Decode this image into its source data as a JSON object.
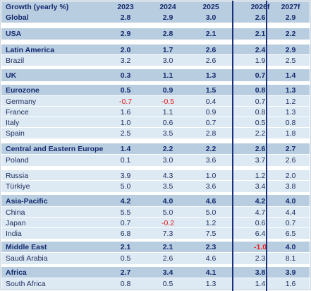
{
  "header": {
    "label": "Growth (yearly %)",
    "years": [
      "2023",
      "2024",
      "2025",
      "2026f",
      "2027f"
    ]
  },
  "colors": {
    "header_bg": "#b9cde0",
    "region_bg": "#b9cde0",
    "row_bg": "#dde9f3",
    "spacer_bg": "#ffffff",
    "negative": "#e62020",
    "text": "#1d2b5c",
    "divider": "#1b2f7a"
  },
  "rows": [
    {
      "label": "Global",
      "values": [
        "2.8",
        "2.9",
        "3.0",
        "2.6",
        "2.9"
      ],
      "bold": true
    },
    {
      "label": "USA",
      "values": [
        "2.9",
        "2.8",
        "2.1",
        "2.1",
        "2.2"
      ],
      "bold": true
    },
    {
      "label": "Latin America",
      "values": [
        "2.0",
        "1.7",
        "2.6",
        "2.4",
        "2.9"
      ],
      "bold": true
    },
    {
      "label": "Brazil",
      "values": [
        "3.2",
        "3.0",
        "2.6",
        "1.9",
        "2.5"
      ],
      "bold": false
    },
    {
      "label": "UK",
      "values": [
        "0.3",
        "1.1",
        "1.3",
        "0.7",
        "1.4"
      ],
      "bold": true
    },
    {
      "label": "Eurozone",
      "values": [
        "0.5",
        "0.9",
        "1.5",
        "0.8",
        "1.3"
      ],
      "bold": true
    },
    {
      "label": "Germany",
      "values": [
        "-0.7",
        "-0.5",
        "0.4",
        "0.7",
        "1.2"
      ],
      "bold": false
    },
    {
      "label": "France",
      "values": [
        "1.6",
        "1.1",
        "0.9",
        "0.8",
        "1.3"
      ],
      "bold": false
    },
    {
      "label": "Italy",
      "values": [
        "1.0",
        "0.6",
        "0.7",
        "0.5",
        "0.8"
      ],
      "bold": false
    },
    {
      "label": "Spain",
      "values": [
        "2.5",
        "3.5",
        "2.8",
        "2.2",
        "1.8"
      ],
      "bold": false
    },
    {
      "label": "Central and Eastern Europe",
      "values": [
        "1.4",
        "2.2",
        "2.2",
        "2.6",
        "2.7"
      ],
      "bold": true
    },
    {
      "label": "Poland",
      "values": [
        "0.1",
        "3.0",
        "3.6",
        "3.7",
        "2.6"
      ],
      "bold": false
    },
    {
      "label": "Russia",
      "values": [
        "3.9",
        "4.3",
        "1.0",
        "1.2",
        "2.0"
      ],
      "bold": false
    },
    {
      "label": "Türkiye",
      "values": [
        "5.0",
        "3.5",
        "3.6",
        "3.4",
        "3.8"
      ],
      "bold": false
    },
    {
      "label": "Asia-Pacific",
      "values": [
        "4.2",
        "4.0",
        "4.6",
        "4.2",
        "4.0"
      ],
      "bold": true
    },
    {
      "label": "China",
      "values": [
        "5.5",
        "5.0",
        "5.0",
        "4.7",
        "4.4"
      ],
      "bold": false
    },
    {
      "label": "Japan",
      "values": [
        "0.7",
        "-0.2",
        "1.2",
        "0.6",
        "0.7"
      ],
      "bold": false
    },
    {
      "label": "India",
      "values": [
        "6.8",
        "7.3",
        "7.5",
        "6.4",
        "6.5"
      ],
      "bold": false
    },
    {
      "label": "Middle East",
      "values": [
        "2.1",
        "2.1",
        "2.3",
        "-1.0",
        "4.0"
      ],
      "bold": true
    },
    {
      "label": "Saudi Arabia",
      "values": [
        "0.5",
        "2.6",
        "4.6",
        "2.3",
        "8.1"
      ],
      "bold": false
    },
    {
      "label": "Africa",
      "values": [
        "2.7",
        "3.4",
        "4.1",
        "3.8",
        "3.9"
      ],
      "bold": true
    },
    {
      "label": "South Africa",
      "values": [
        "0.8",
        "0.5",
        "1.3",
        "1.4",
        "1.6"
      ],
      "bold": false
    }
  ]
}
